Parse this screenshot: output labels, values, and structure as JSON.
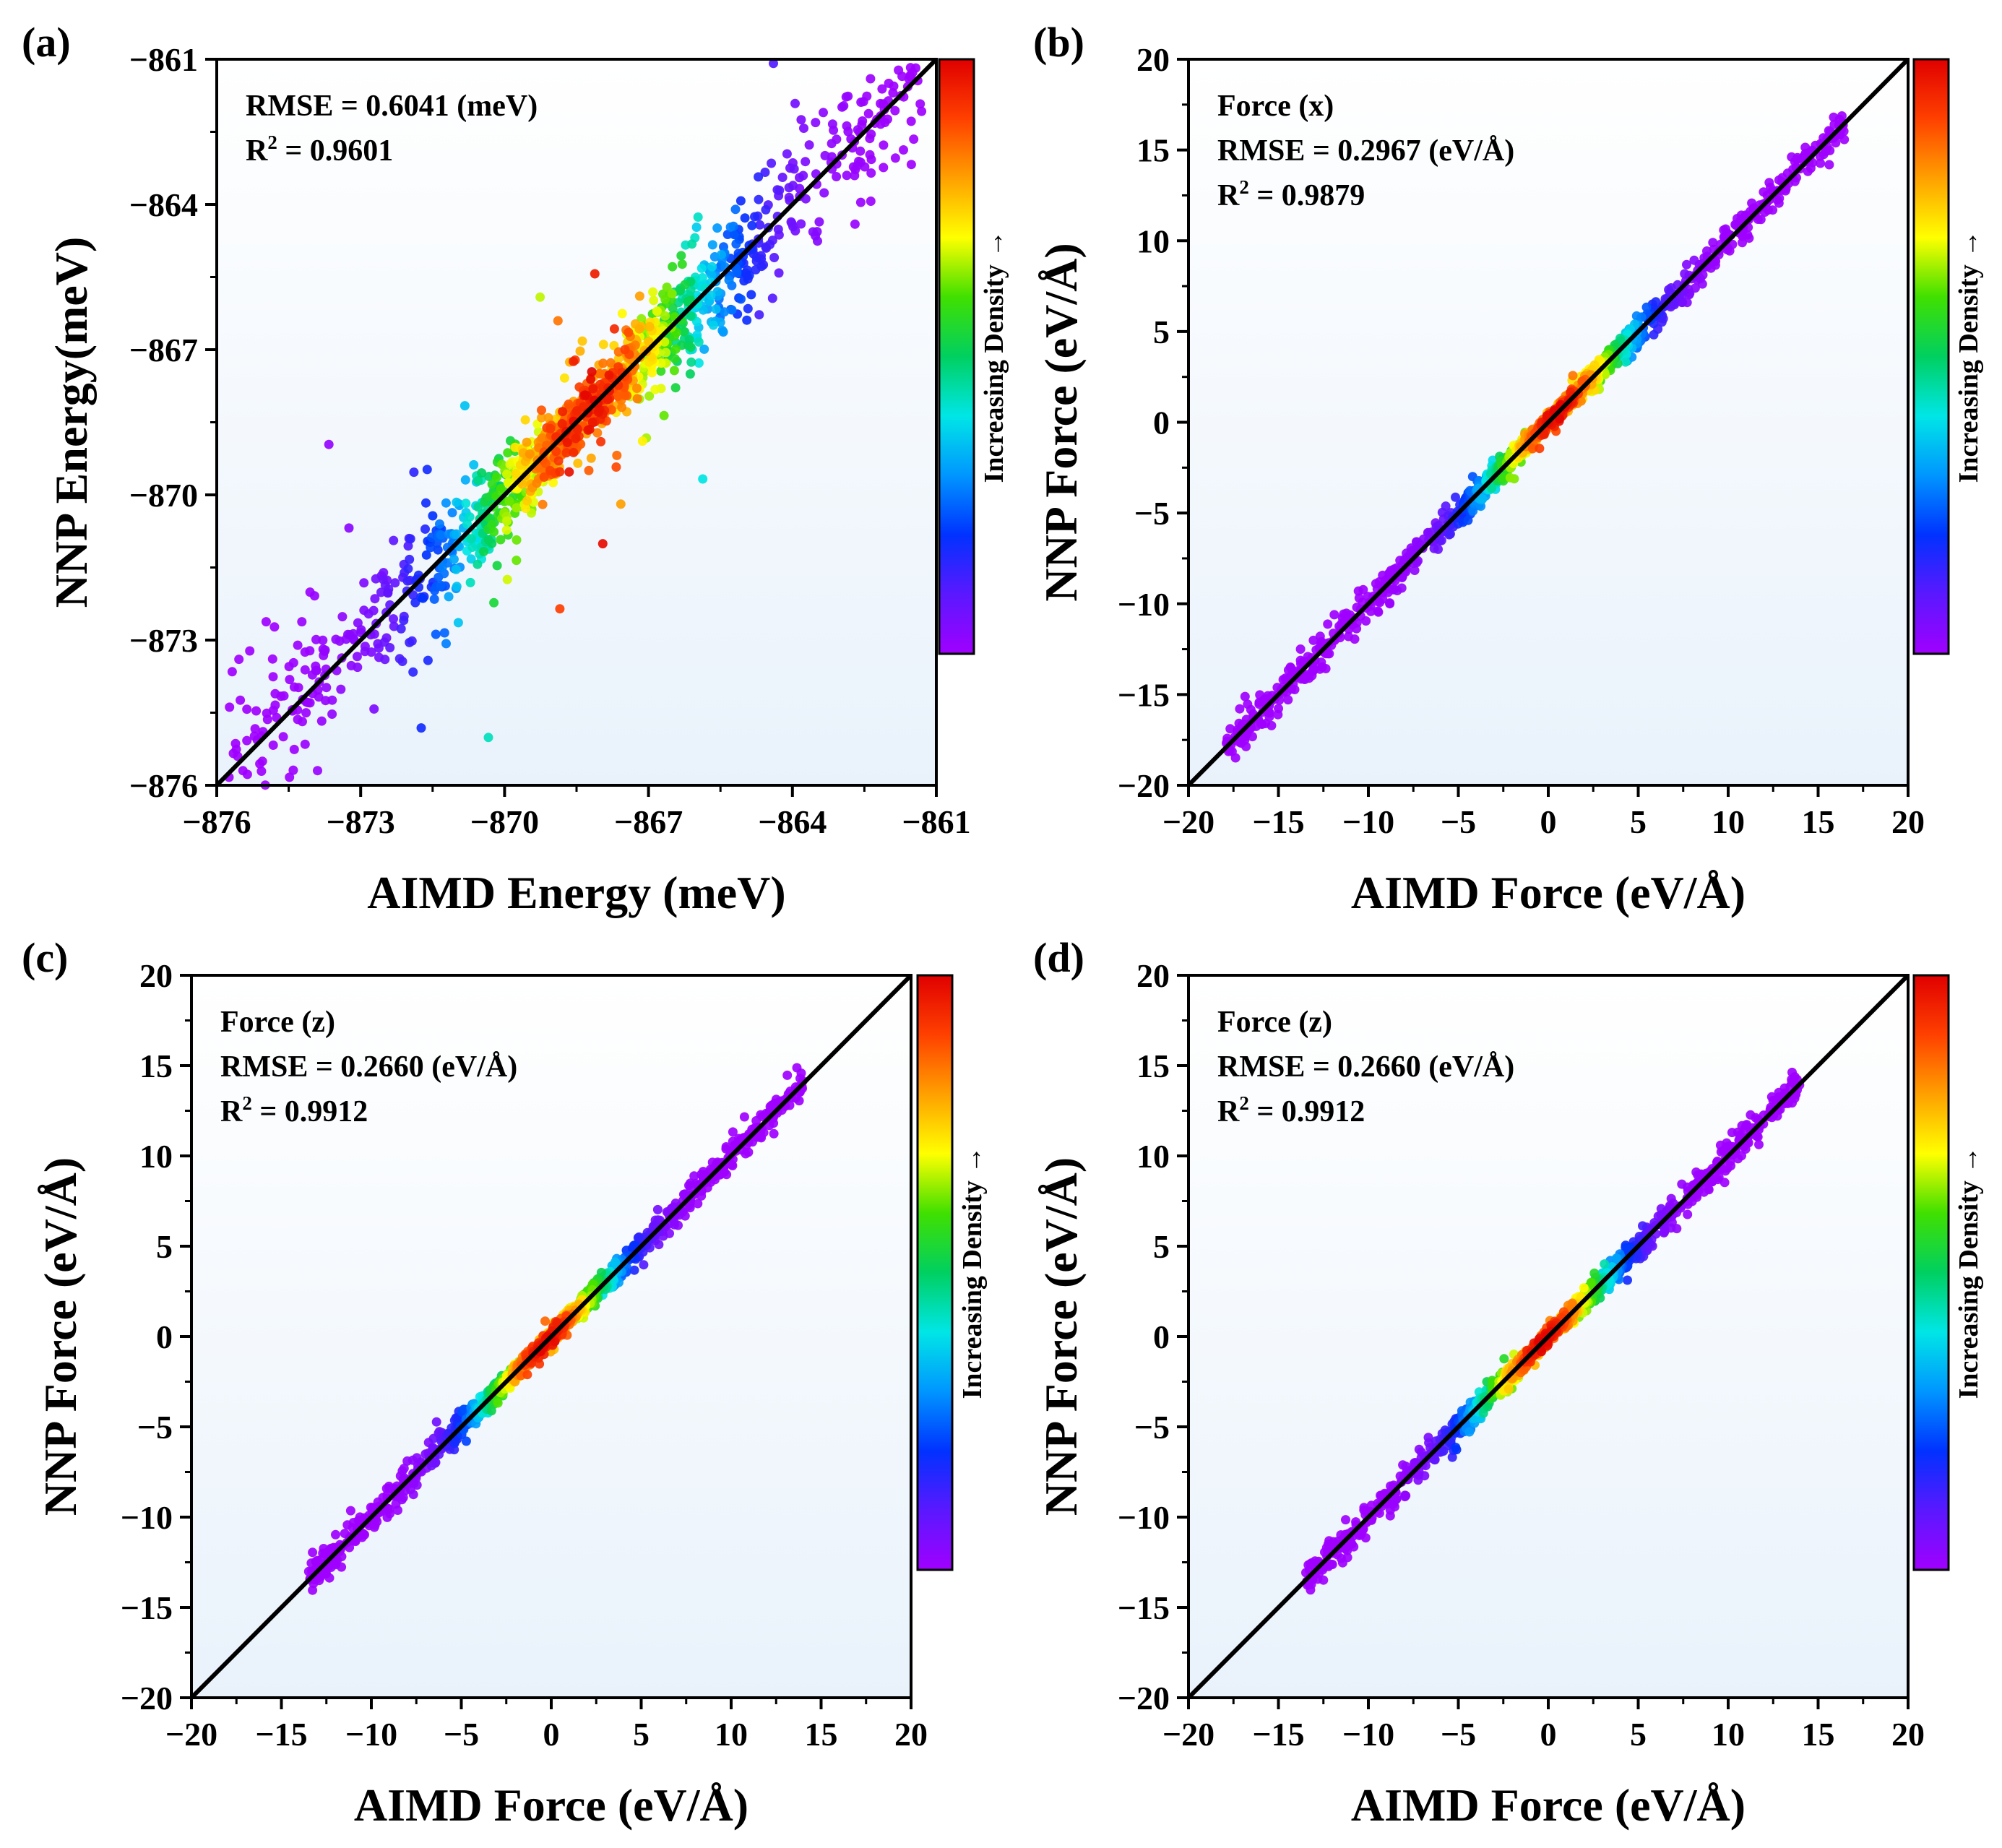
{
  "colors": {
    "plot_bg_top": "#ffffff",
    "plot_bg_bottom": "#e9f2fb",
    "frame": "#000000",
    "diagonal": "#000000",
    "colormap": [
      "#a000ff",
      "#5a18ff",
      "#0032ff",
      "#0096ff",
      "#00e6e6",
      "#00d060",
      "#40e000",
      "#ffff00",
      "#ffa000",
      "#ff4000",
      "#e00000"
    ]
  },
  "chart_data": [
    {
      "panel": "(a)",
      "type": "scatter",
      "subtype": "density-scatter parity plot",
      "xlabel": "AIMD Energy (meV)",
      "ylabel": "NNP Energy(meV)",
      "xlim": [
        -876,
        -861
      ],
      "ylim": [
        -876,
        -861
      ],
      "xticks": [
        -876,
        -873,
        -870,
        -867,
        -864,
        -861
      ],
      "yticks": [
        -876,
        -873,
        -870,
        -867,
        -864,
        -861
      ],
      "xtick_labels": [
        "−876",
        "−873",
        "−870",
        "−867",
        "−864",
        "−861"
      ],
      "ytick_labels": [
        "−876",
        "−873",
        "−870",
        "−867",
        "−864",
        "−861"
      ],
      "minor_per_major": 1,
      "annotations": [
        {
          "text": "RMSE = 0.6041 (meV)"
        },
        {
          "base": "R",
          "sup": "2",
          "rest": " = 0.9601"
        }
      ],
      "metrics": {
        "rmse": 0.6041,
        "rmse_unit": "meV",
        "r2": 0.9601
      },
      "reference_line": "y = x",
      "colorbar_label": "Increasing Density →",
      "cluster": {
        "x_range": [
          -875.8,
          -861.3
        ],
        "spread": 0.55,
        "outliers": 0.5,
        "peak_x": -868.3,
        "peak_width": 1.6,
        "count": 1400,
        "seed": 11
      }
    },
    {
      "panel": "(b)",
      "type": "scatter",
      "subtype": "density-scatter parity plot",
      "xlabel": "AIMD Force (eV/Å)",
      "ylabel": "NNP Force (eV/Å)",
      "xlim": [
        -20,
        20
      ],
      "ylim": [
        -20,
        20
      ],
      "xticks": [
        -20,
        -15,
        -10,
        -5,
        0,
        5,
        10,
        15,
        20
      ],
      "yticks": [
        -20,
        -15,
        -10,
        -5,
        0,
        5,
        10,
        15,
        20
      ],
      "xtick_labels": [
        "−20",
        "−15",
        "−10",
        "−5",
        "0",
        "5",
        "10",
        "15",
        "20"
      ],
      "ytick_labels": [
        "−20",
        "−15",
        "−10",
        "−5",
        "0",
        "5",
        "10",
        "15",
        "20"
      ],
      "minor_per_major": 1,
      "annotations": [
        {
          "text": "Force (x)"
        },
        {
          "text": "RMSE = 0.2967 (eV/Å)"
        },
        {
          "base": "R",
          "sup": "2",
          "rest": " = 0.9879"
        }
      ],
      "metrics": {
        "component": "x",
        "rmse": 0.2967,
        "rmse_unit": "eV/Å",
        "r2": 0.9879
      },
      "reference_line": "y = x",
      "colorbar_label": "Increasing Density →",
      "cluster": {
        "x_range": [
          -18,
          16.5
        ],
        "spread": 0.35,
        "outliers": 0.15,
        "peak_x": 0.5,
        "peak_width": 2.5,
        "count": 1500,
        "seed": 23
      }
    },
    {
      "panel": "(c)",
      "type": "scatter",
      "subtype": "density-scatter parity plot",
      "xlabel": "AIMD Force (eV/Å)",
      "ylabel": "NNP Force (eV/Å)",
      "xlim": [
        -20,
        20
      ],
      "ylim": [
        -20,
        20
      ],
      "xticks": [
        -20,
        -15,
        -10,
        -5,
        0,
        5,
        10,
        15,
        20
      ],
      "yticks": [
        -20,
        -15,
        -10,
        -5,
        0,
        5,
        10,
        15,
        20
      ],
      "xtick_labels": [
        "−20",
        "−15",
        "−10",
        "−5",
        "0",
        "5",
        "10",
        "15",
        "20"
      ],
      "ytick_labels": [
        "−20",
        "−15",
        "−10",
        "−5",
        "0",
        "5",
        "10",
        "15",
        "20"
      ],
      "minor_per_major": 1,
      "annotations": [
        {
          "text": "Force (z)"
        },
        {
          "text": "RMSE = 0.2660 (eV/Å)"
        },
        {
          "base": "R",
          "sup": "2",
          "rest": " = 0.9912"
        }
      ],
      "metrics": {
        "component": "z",
        "rmse": 0.266,
        "rmse_unit": "eV/Å",
        "r2": 0.9912
      },
      "reference_line": "y = x",
      "colorbar_label": "Increasing Density →",
      "cluster": {
        "x_range": [
          -13.5,
          14
        ],
        "spread": 0.32,
        "outliers": 0.12,
        "peak_x": -0.3,
        "peak_width": 2.3,
        "count": 1500,
        "seed": 37
      }
    },
    {
      "panel": "(d)",
      "type": "scatter",
      "subtype": "density-scatter parity plot",
      "xlabel": "AIMD Force (eV/Å)",
      "ylabel": "NNP Force (eV/Å)",
      "xlim": [
        -20,
        20
      ],
      "ylim": [
        -20,
        20
      ],
      "xticks": [
        -20,
        -15,
        -10,
        -5,
        0,
        5,
        10,
        15,
        20
      ],
      "yticks": [
        -20,
        -15,
        -10,
        -5,
        0,
        5,
        10,
        15,
        20
      ],
      "xtick_labels": [
        "−20",
        "−15",
        "−10",
        "−5",
        "0",
        "5",
        "10",
        "15",
        "20"
      ],
      "ytick_labels": [
        "−20",
        "−15",
        "−10",
        "−5",
        "0",
        "5",
        "10",
        "15",
        "20"
      ],
      "minor_per_major": 1,
      "annotations": [
        {
          "text": "Force (z)"
        },
        {
          "text": "RMSE = 0.2660 (eV/Å)"
        },
        {
          "base": "R",
          "sup": "2",
          "rest": " = 0.9912"
        }
      ],
      "metrics": {
        "component": "z",
        "rmse": 0.266,
        "rmse_unit": "eV/Å",
        "r2": 0.9912
      },
      "reference_line": "y = x",
      "colorbar_label": "Increasing Density →",
      "cluster": {
        "x_range": [
          -13.5,
          14
        ],
        "spread": 0.32,
        "outliers": 0.12,
        "peak_x": -0.3,
        "peak_width": 2.3,
        "count": 1500,
        "seed": 53
      }
    }
  ]
}
